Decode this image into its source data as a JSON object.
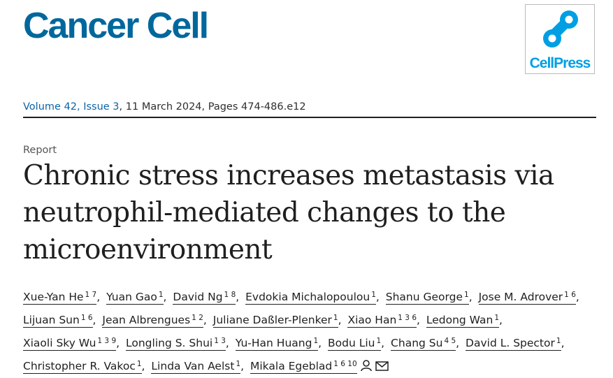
{
  "journal": {
    "title": "Cancer Cell"
  },
  "publisher": {
    "logo_text": "CellPress",
    "logo_color": "#009fe3"
  },
  "publication": {
    "volume_issue": "Volume 42, Issue 3",
    "date_pages": ", 11 March 2024, Pages 474-486.e12"
  },
  "article": {
    "type": "Report",
    "title": "Chronic stress increases metastasis via neutrophil-mediated changes to the microenvironment"
  },
  "authors": [
    {
      "name": "Xue-Yan He",
      "aff": "1 7"
    },
    {
      "name": "Yuan Gao",
      "aff": "1"
    },
    {
      "name": "David Ng",
      "aff": "1 8"
    },
    {
      "name": "Evdokia Michalopoulou",
      "aff": "1"
    },
    {
      "name": "Shanu George",
      "aff": "1"
    },
    {
      "name": "Jose M. Adrover",
      "aff": "1 6"
    },
    {
      "name": "Lijuan Sun",
      "aff": "1 6"
    },
    {
      "name": "Jean Albrengues",
      "aff": "1 2"
    },
    {
      "name": "Juliane Daßler-Plenker",
      "aff": "1"
    },
    {
      "name": "Xiao Han",
      "aff": "1 3 6"
    },
    {
      "name": "Ledong Wan",
      "aff": "1"
    },
    {
      "name": "Xiaoli Sky Wu",
      "aff": "1 3 9"
    },
    {
      "name": "Longling S. Shui",
      "aff": "1 3"
    },
    {
      "name": "Yu-Han Huang",
      "aff": "1"
    },
    {
      "name": "Bodu Liu",
      "aff": "1"
    },
    {
      "name": "Chang Su",
      "aff": "4 5"
    },
    {
      "name": "David L. Spector",
      "aff": "1"
    },
    {
      "name": "Christopher R. Vakoc",
      "aff": "1"
    },
    {
      "name": "Linda Van Aelst",
      "aff": "1"
    },
    {
      "name": "Mikala Egeblad",
      "aff": "1 6 10"
    }
  ],
  "icons": {
    "corresponding": "person-icon",
    "email": "envelope-icon"
  }
}
